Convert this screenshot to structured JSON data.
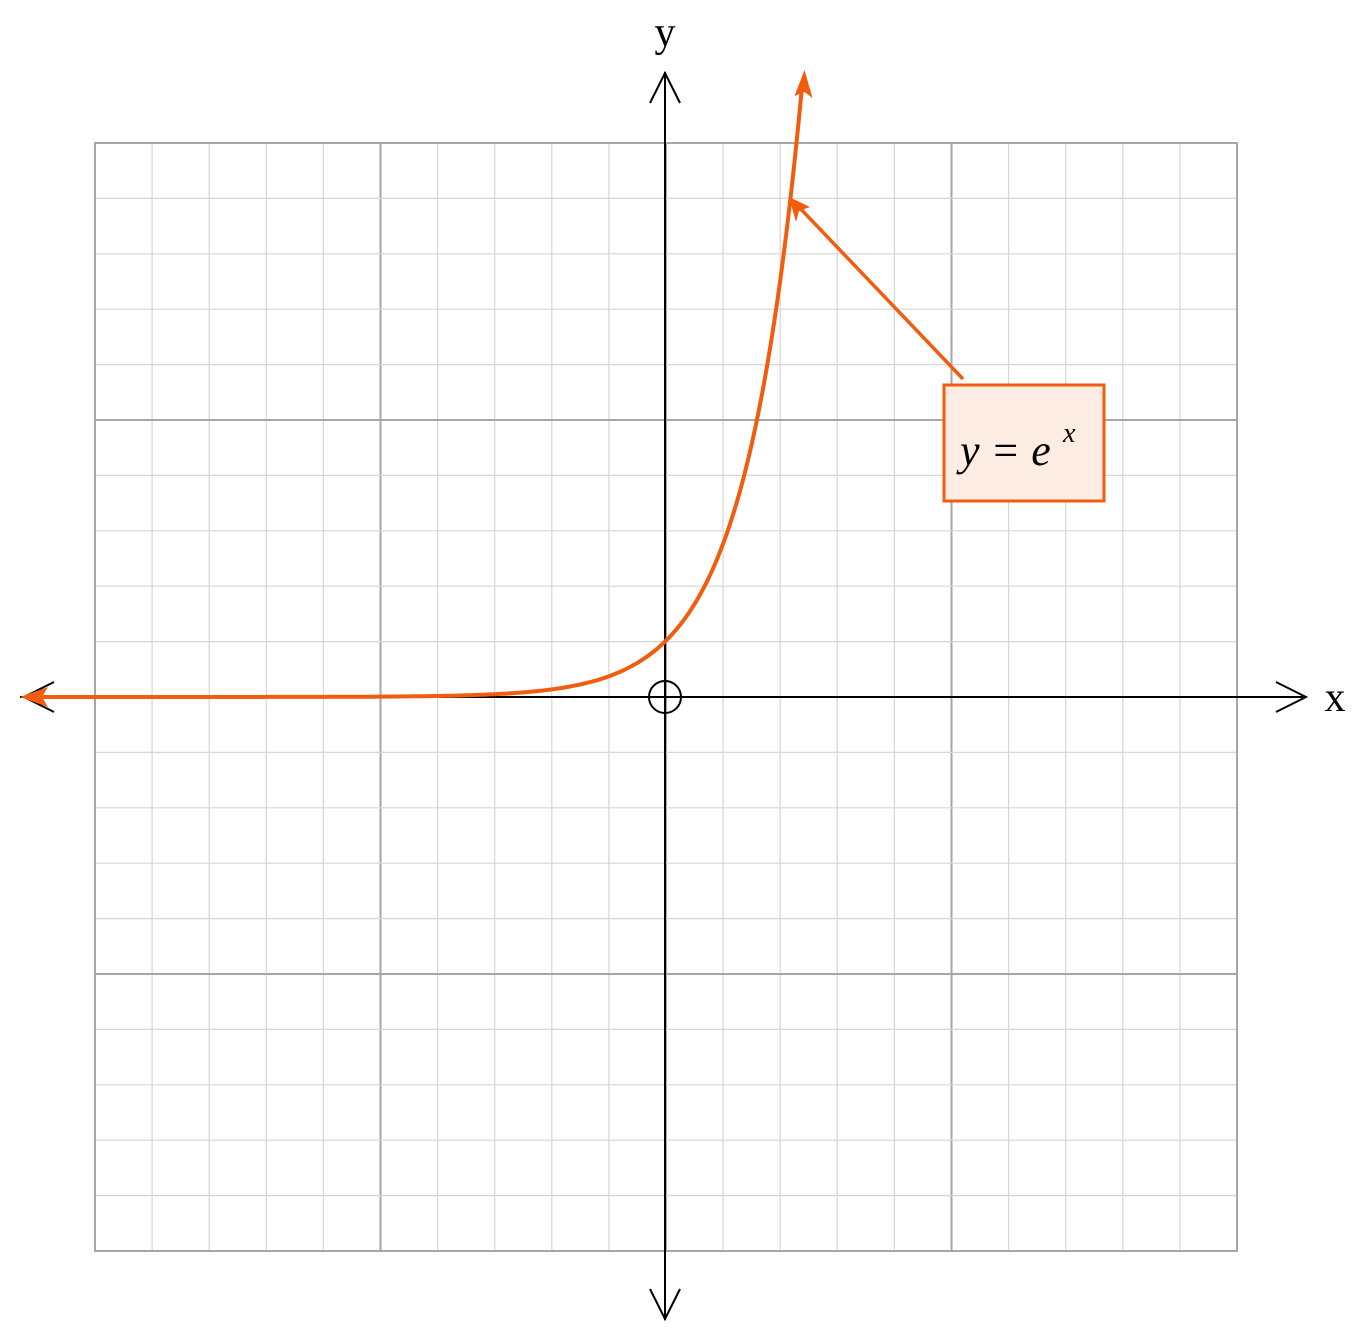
{
  "axes": {
    "x_label": "x",
    "y_label": "y"
  },
  "annotation": {
    "text": "y = e",
    "superscript": "x"
  }
}
